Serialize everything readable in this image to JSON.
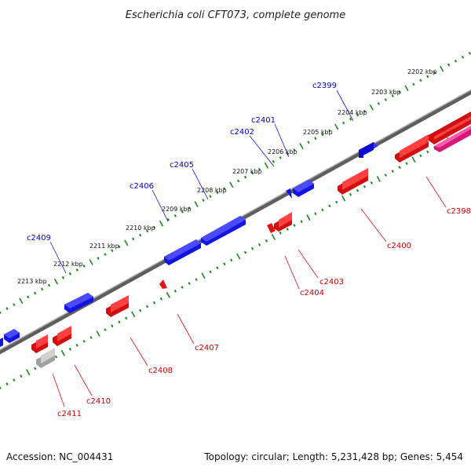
{
  "title": "Escherichia coli CFT073, complete genome",
  "footer": {
    "accession": "Accession: NC_004431",
    "summary": "Topology: circular; Length: 5,231,428 bp; Genes: 5,454"
  },
  "colors": {
    "forward": "#1010e8",
    "reverse": "#e81010",
    "pink": "#e0208a",
    "gray": "#b8b8b8",
    "backbone": "#808080",
    "ticks": "#1a8a1a",
    "label_top": "#0000cc",
    "label_bottom": "#cc0000"
  },
  "kbp_labels": [
    {
      "text": "2202 kbp"
    },
    {
      "text": "2203 kbp"
    },
    {
      "text": "2204 kbp"
    },
    {
      "text": "2205 kbp"
    },
    {
      "text": "2206 kbp"
    },
    {
      "text": "2207 kbp"
    },
    {
      "text": "2208 kbp"
    },
    {
      "text": "2209 kbp"
    },
    {
      "text": "2210 kbp"
    },
    {
      "text": "2211 kbp"
    },
    {
      "text": "2212 kbp"
    },
    {
      "text": "2213 kbp"
    }
  ],
  "gene_labels_top": [
    {
      "text": "c2399"
    },
    {
      "text": "c2401"
    },
    {
      "text": "c2402"
    },
    {
      "text": "c2405"
    },
    {
      "text": "c2406"
    },
    {
      "text": "c2409"
    }
  ],
  "gene_labels_bottom": [
    {
      "text": "c2398"
    },
    {
      "text": "c2400"
    },
    {
      "text": "c2403"
    },
    {
      "text": "c2404"
    },
    {
      "text": "c2407"
    },
    {
      "text": "c2408"
    },
    {
      "text": "c2410"
    },
    {
      "text": "c2411"
    }
  ]
}
